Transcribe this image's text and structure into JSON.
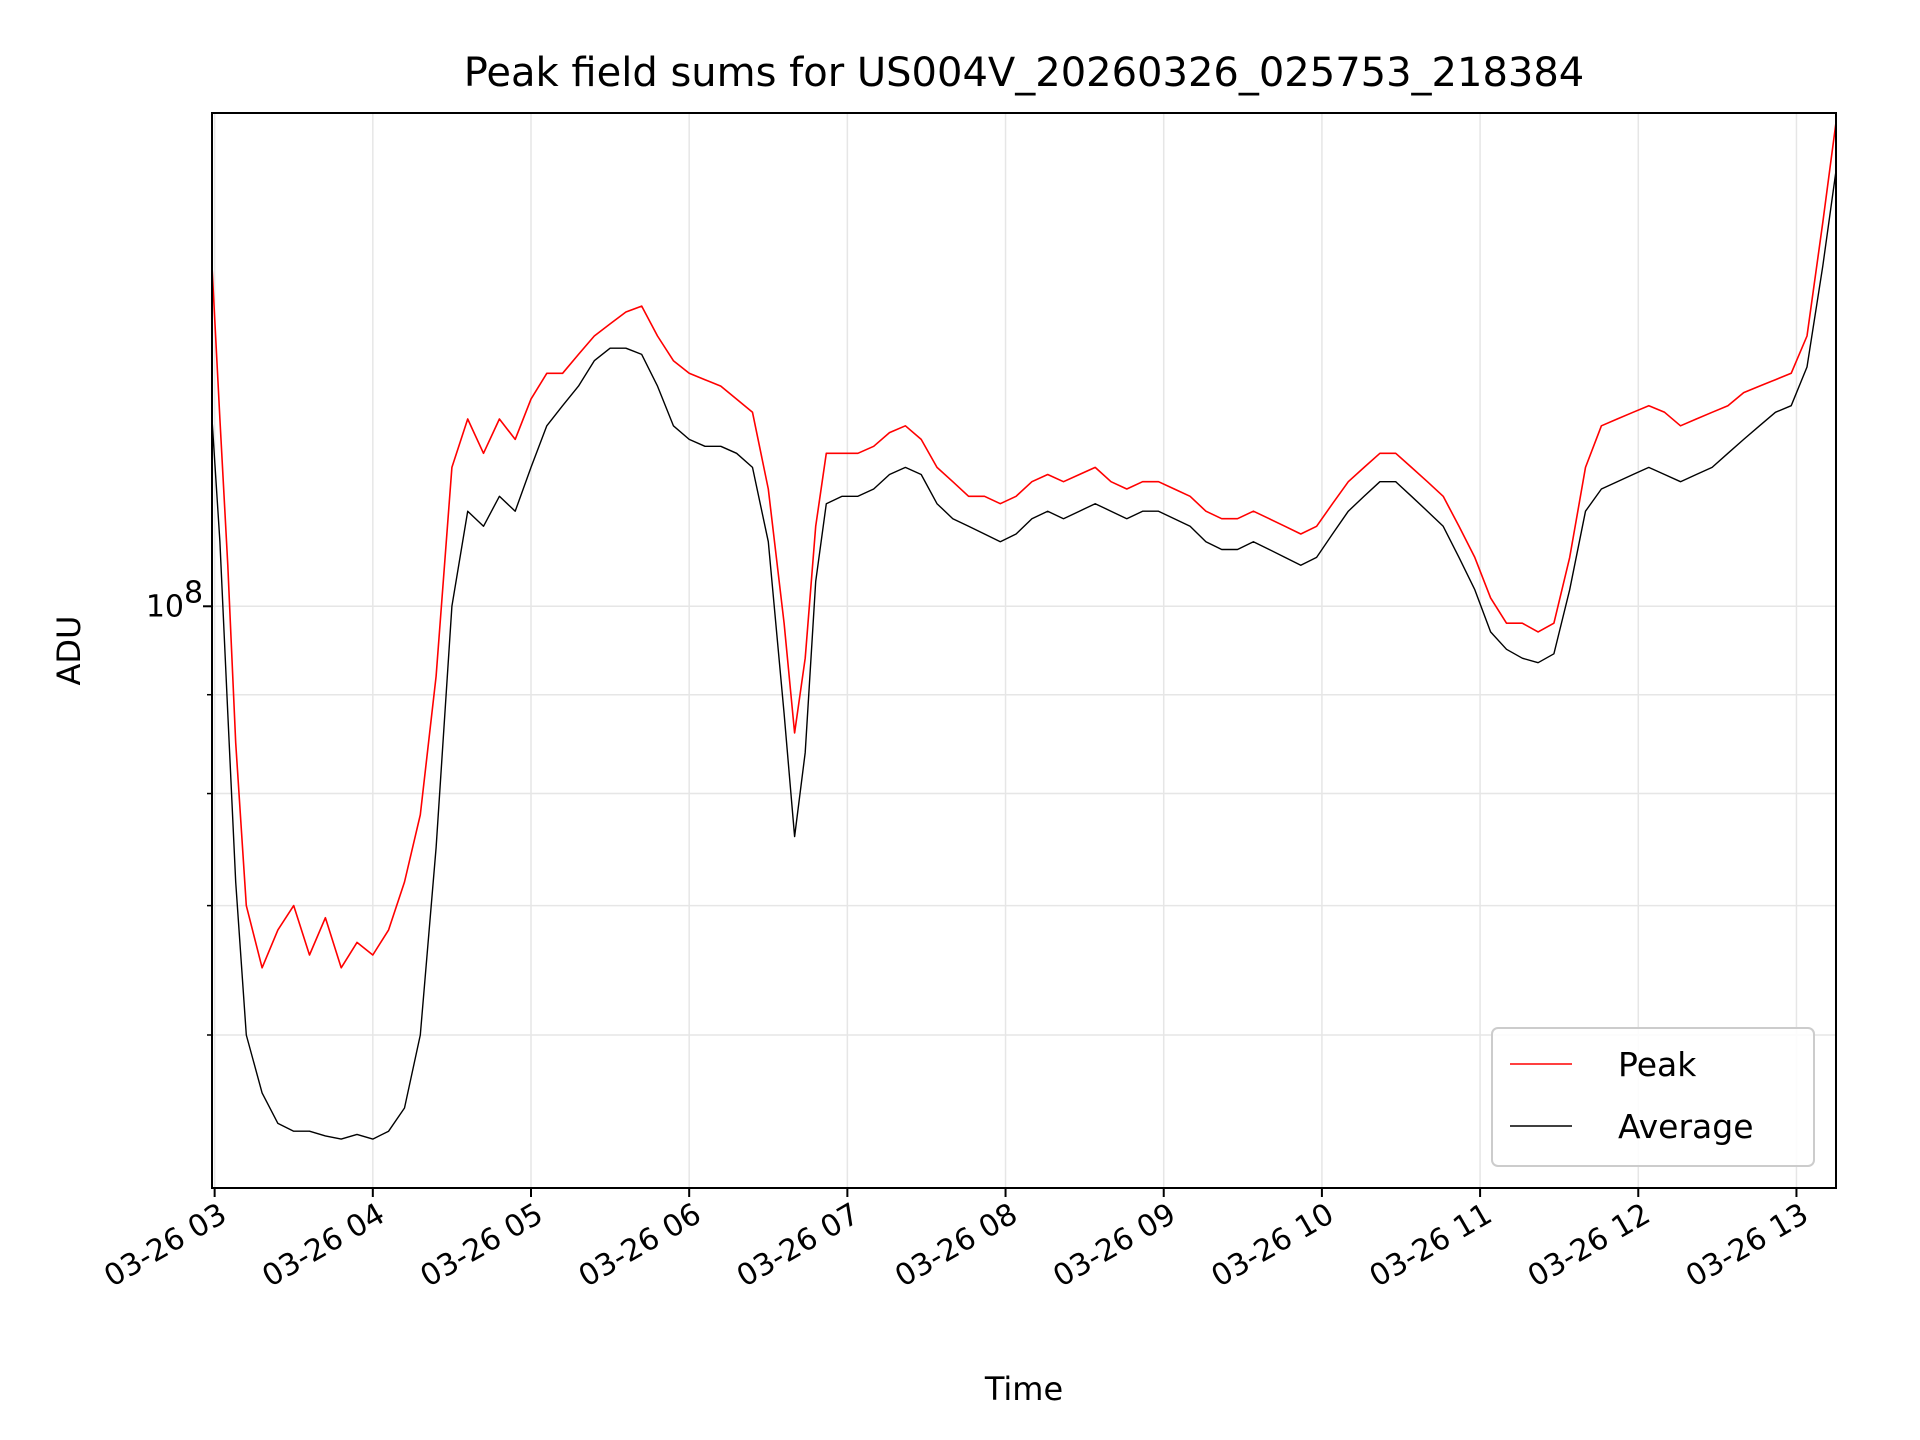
{
  "chart_data": {
    "type": "line",
    "title": "Peak field sums for US004V_20260326_025753_218384",
    "xlabel": "Time",
    "ylabel": "ADU",
    "y_scale": "log",
    "ylim": [
      50000000,
      180000000
    ],
    "xlim": [
      "03-26 02:59",
      "03-26 13:15"
    ],
    "x_ticks": [
      {
        "label": "03-26 03",
        "time": "03-26 03:00"
      },
      {
        "label": "03-26 04",
        "time": "03-26 04:00"
      },
      {
        "label": "03-26 05",
        "time": "03-26 05:00"
      },
      {
        "label": "03-26 06",
        "time": "03-26 06:00"
      },
      {
        "label": "03-26 07",
        "time": "03-26 07:00"
      },
      {
        "label": "03-26 08",
        "time": "03-26 08:00"
      },
      {
        "label": "03-26 09",
        "time": "03-26 09:00"
      },
      {
        "label": "03-26 10",
        "time": "03-26 10:00"
      },
      {
        "label": "03-26 11",
        "time": "03-26 11:00"
      },
      {
        "label": "03-26 12",
        "time": "03-26 12:00"
      },
      {
        "label": "03-26 13",
        "time": "03-26 13:00"
      }
    ],
    "y_major_ticks": [
      {
        "label": "10",
        "exponent": "8",
        "value": 100000000
      }
    ],
    "y_minor_ticks": [
      60000000,
      70000000,
      80000000,
      90000000
    ],
    "grid": true,
    "legend": {
      "position": "lower-right"
    },
    "series": [
      {
        "name": "Peak",
        "color": "#ff0000",
        "x": [
          "03-26 02:59",
          "03-26 03:02",
          "03-26 03:05",
          "03-26 03:08",
          "03-26 03:12",
          "03-26 03:18",
          "03-26 03:24",
          "03-26 03:30",
          "03-26 03:36",
          "03-26 03:42",
          "03-26 03:48",
          "03-26 03:54",
          "03-26 04:00",
          "03-26 04:06",
          "03-26 04:12",
          "03-26 04:18",
          "03-26 04:24",
          "03-26 04:30",
          "03-26 04:36",
          "03-26 04:42",
          "03-26 04:48",
          "03-26 04:54",
          "03-26 05:00",
          "03-26 05:06",
          "03-26 05:12",
          "03-26 05:18",
          "03-26 05:24",
          "03-26 05:30",
          "03-26 05:36",
          "03-26 05:42",
          "03-26 05:48",
          "03-26 05:54",
          "03-26 06:00",
          "03-26 06:06",
          "03-26 06:12",
          "03-26 06:18",
          "03-26 06:24",
          "03-26 06:30",
          "03-26 06:36",
          "03-26 06:40",
          "03-26 06:44",
          "03-26 06:48",
          "03-26 06:52",
          "03-26 06:58",
          "03-26 07:04",
          "03-26 07:10",
          "03-26 07:16",
          "03-26 07:22",
          "03-26 07:28",
          "03-26 07:34",
          "03-26 07:40",
          "03-26 07:46",
          "03-26 07:52",
          "03-26 07:58",
          "03-26 08:04",
          "03-26 08:10",
          "03-26 08:16",
          "03-26 08:22",
          "03-26 08:28",
          "03-26 08:34",
          "03-26 08:40",
          "03-26 08:46",
          "03-26 08:52",
          "03-26 08:58",
          "03-26 09:04",
          "03-26 09:10",
          "03-26 09:16",
          "03-26 09:22",
          "03-26 09:28",
          "03-26 09:34",
          "03-26 09:40",
          "03-26 09:46",
          "03-26 09:52",
          "03-26 09:58",
          "03-26 10:04",
          "03-26 10:10",
          "03-26 10:16",
          "03-26 10:22",
          "03-26 10:28",
          "03-26 10:34",
          "03-26 10:40",
          "03-26 10:46",
          "03-26 10:52",
          "03-26 10:58",
          "03-26 11:04",
          "03-26 11:10",
          "03-26 11:16",
          "03-26 11:22",
          "03-26 11:28",
          "03-26 11:34",
          "03-26 11:40",
          "03-26 11:46",
          "03-26 11:52",
          "03-26 11:58",
          "03-26 12:04",
          "03-26 12:10",
          "03-26 12:16",
          "03-26 12:22",
          "03-26 12:28",
          "03-26 12:34",
          "03-26 12:40",
          "03-26 12:46",
          "03-26 12:52",
          "03-26 12:58",
          "03-26 13:04",
          "03-26 13:10",
          "03-26 13:15"
        ],
        "values": [
          150000000,
          125000000,
          105000000,
          85000000,
          70000000,
          65000000,
          68000000,
          70000000,
          66000000,
          69000000,
          65000000,
          67000000,
          66000000,
          68000000,
          72000000,
          78000000,
          92000000,
          118000000,
          125000000,
          120000000,
          125000000,
          122000000,
          128000000,
          132000000,
          132000000,
          135000000,
          138000000,
          140000000,
          142000000,
          143000000,
          138000000,
          134000000,
          132000000,
          131000000,
          130000000,
          128000000,
          126000000,
          115000000,
          98000000,
          86000000,
          94000000,
          110000000,
          120000000,
          120000000,
          120000000,
          121000000,
          123000000,
          124000000,
          122000000,
          118000000,
          116000000,
          114000000,
          114000000,
          113000000,
          114000000,
          116000000,
          117000000,
          116000000,
          117000000,
          118000000,
          116000000,
          115000000,
          116000000,
          116000000,
          115000000,
          114000000,
          112000000,
          111000000,
          111000000,
          112000000,
          111000000,
          110000000,
          109000000,
          110000000,
          113000000,
          116000000,
          118000000,
          120000000,
          120000000,
          118000000,
          116000000,
          114000000,
          110000000,
          106000000,
          101000000,
          98000000,
          98000000,
          97000000,
          98000000,
          106000000,
          118000000,
          124000000,
          125000000,
          126000000,
          127000000,
          126000000,
          124000000,
          125000000,
          126000000,
          127000000,
          129000000,
          130000000,
          131000000,
          132000000,
          138000000,
          158000000,
          178000000
        ]
      },
      {
        "name": "Average",
        "color": "#000000",
        "x": [
          "03-26 02:59",
          "03-26 03:02",
          "03-26 03:05",
          "03-26 03:08",
          "03-26 03:12",
          "03-26 03:18",
          "03-26 03:24",
          "03-26 03:30",
          "03-26 03:36",
          "03-26 03:42",
          "03-26 03:48",
          "03-26 03:54",
          "03-26 04:00",
          "03-26 04:06",
          "03-26 04:12",
          "03-26 04:18",
          "03-26 04:24",
          "03-26 04:30",
          "03-26 04:36",
          "03-26 04:42",
          "03-26 04:48",
          "03-26 04:54",
          "03-26 05:00",
          "03-26 05:06",
          "03-26 05:12",
          "03-26 05:18",
          "03-26 05:24",
          "03-26 05:30",
          "03-26 05:36",
          "03-26 05:42",
          "03-26 05:48",
          "03-26 05:54",
          "03-26 06:00",
          "03-26 06:06",
          "03-26 06:12",
          "03-26 06:18",
          "03-26 06:24",
          "03-26 06:30",
          "03-26 06:36",
          "03-26 06:40",
          "03-26 06:44",
          "03-26 06:48",
          "03-26 06:52",
          "03-26 06:58",
          "03-26 07:04",
          "03-26 07:10",
          "03-26 07:16",
          "03-26 07:22",
          "03-26 07:28",
          "03-26 07:34",
          "03-26 07:40",
          "03-26 07:46",
          "03-26 07:52",
          "03-26 07:58",
          "03-26 08:04",
          "03-26 08:10",
          "03-26 08:16",
          "03-26 08:22",
          "03-26 08:28",
          "03-26 08:34",
          "03-26 08:40",
          "03-26 08:46",
          "03-26 08:52",
          "03-26 08:58",
          "03-26 09:04",
          "03-26 09:10",
          "03-26 09:16",
          "03-26 09:22",
          "03-26 09:28",
          "03-26 09:34",
          "03-26 09:40",
          "03-26 09:46",
          "03-26 09:52",
          "03-26 09:58",
          "03-26 10:04",
          "03-26 10:10",
          "03-26 10:16",
          "03-26 10:22",
          "03-26 10:28",
          "03-26 10:34",
          "03-26 10:40",
          "03-26 10:46",
          "03-26 10:52",
          "03-26 10:58",
          "03-26 11:04",
          "03-26 11:10",
          "03-26 11:16",
          "03-26 11:22",
          "03-26 11:28",
          "03-26 11:34",
          "03-26 11:40",
          "03-26 11:46",
          "03-26 11:52",
          "03-26 11:58",
          "03-26 12:04",
          "03-26 12:10",
          "03-26 12:16",
          "03-26 12:22",
          "03-26 12:28",
          "03-26 12:34",
          "03-26 12:40",
          "03-26 12:46",
          "03-26 12:52",
          "03-26 12:58",
          "03-26 13:04",
          "03-26 13:10",
          "03-26 13:15"
        ],
        "values": [
          125000000,
          108000000,
          88000000,
          72000000,
          60000000,
          56000000,
          54000000,
          53500000,
          53500000,
          53200000,
          53000000,
          53300000,
          53000000,
          53500000,
          55000000,
          60000000,
          75000000,
          100000000,
          112000000,
          110000000,
          114000000,
          112000000,
          118000000,
          124000000,
          127000000,
          130000000,
          134000000,
          136000000,
          136000000,
          135000000,
          130000000,
          124000000,
          122000000,
          121000000,
          121000000,
          120000000,
          118000000,
          108000000,
          88000000,
          76000000,
          84000000,
          103000000,
          113000000,
          114000000,
          114000000,
          115000000,
          117000000,
          118000000,
          117000000,
          113000000,
          111000000,
          110000000,
          109000000,
          108000000,
          109000000,
          111000000,
          112000000,
          111000000,
          112000000,
          113000000,
          112000000,
          111000000,
          112000000,
          112000000,
          111000000,
          110000000,
          108000000,
          107000000,
          107000000,
          108000000,
          107000000,
          106000000,
          105000000,
          106000000,
          109000000,
          112000000,
          114000000,
          116000000,
          116000000,
          114000000,
          112000000,
          110000000,
          106000000,
          102000000,
          97000000,
          95000000,
          94000000,
          93500000,
          94500000,
          102000000,
          112000000,
          115000000,
          116000000,
          117000000,
          118000000,
          117000000,
          116000000,
          117000000,
          118000000,
          120000000,
          122000000,
          124000000,
          126000000,
          127000000,
          133000000,
          150000000,
          168000000
        ]
      }
    ]
  }
}
